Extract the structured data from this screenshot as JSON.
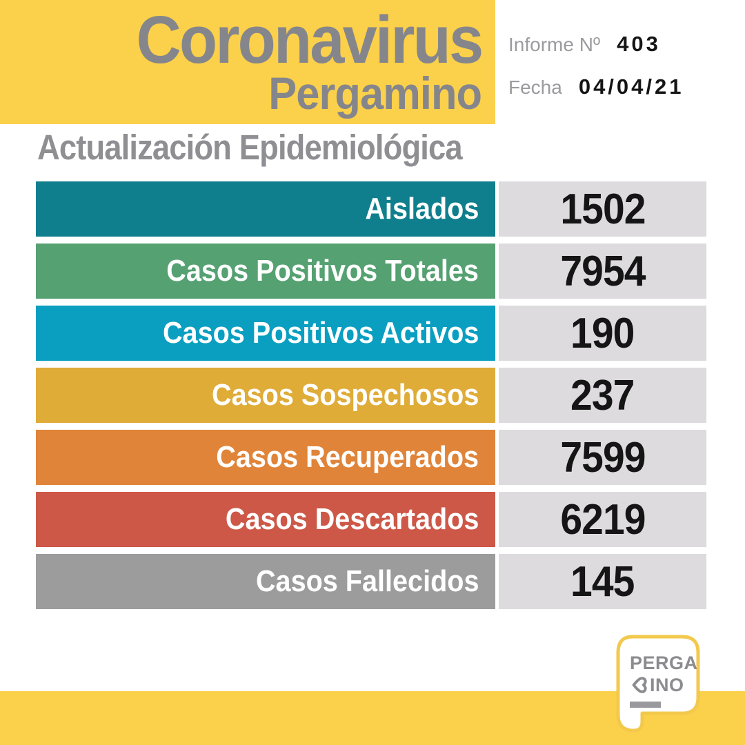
{
  "header": {
    "title": "Coronavirus",
    "subtitle": "Pergamino",
    "report": {
      "label": "Informe Nº",
      "number": "403"
    },
    "date": {
      "label": "Fecha",
      "value": "04/04/21"
    }
  },
  "section_title": "Actualización Epidemiológica",
  "chart_data": {
    "type": "table",
    "title": "Actualización Epidemiológica",
    "categories": [
      "Aislados",
      "Casos Positivos Totales",
      "Casos Positivos Activos",
      "Casos Sospechosos",
      "Casos Recuperados",
      "Casos Descartados",
      "Casos Fallecidos"
    ],
    "values": [
      1502,
      7954,
      190,
      237,
      7599,
      6219,
      145
    ],
    "row_colors": [
      "#0F7E8D",
      "#55A172",
      "#0A9FC1",
      "#DFAC38",
      "#E08439",
      "#CD5847",
      "#9C9C9C"
    ],
    "legend_position": "none",
    "grid": false
  },
  "logo": {
    "line1": "PERGA",
    "line2": "INO",
    "icon": "heart-icon"
  },
  "colors": {
    "yellow": "#FBD04A",
    "title_gray": "#85868C",
    "section_gray": "#8E8E93",
    "label_gray": "#9B9B9F",
    "value_black": "#151515",
    "value_bg": "#DDDBDE",
    "logo_gray": "#8B8B90",
    "logo_border": "#F2C94C"
  }
}
